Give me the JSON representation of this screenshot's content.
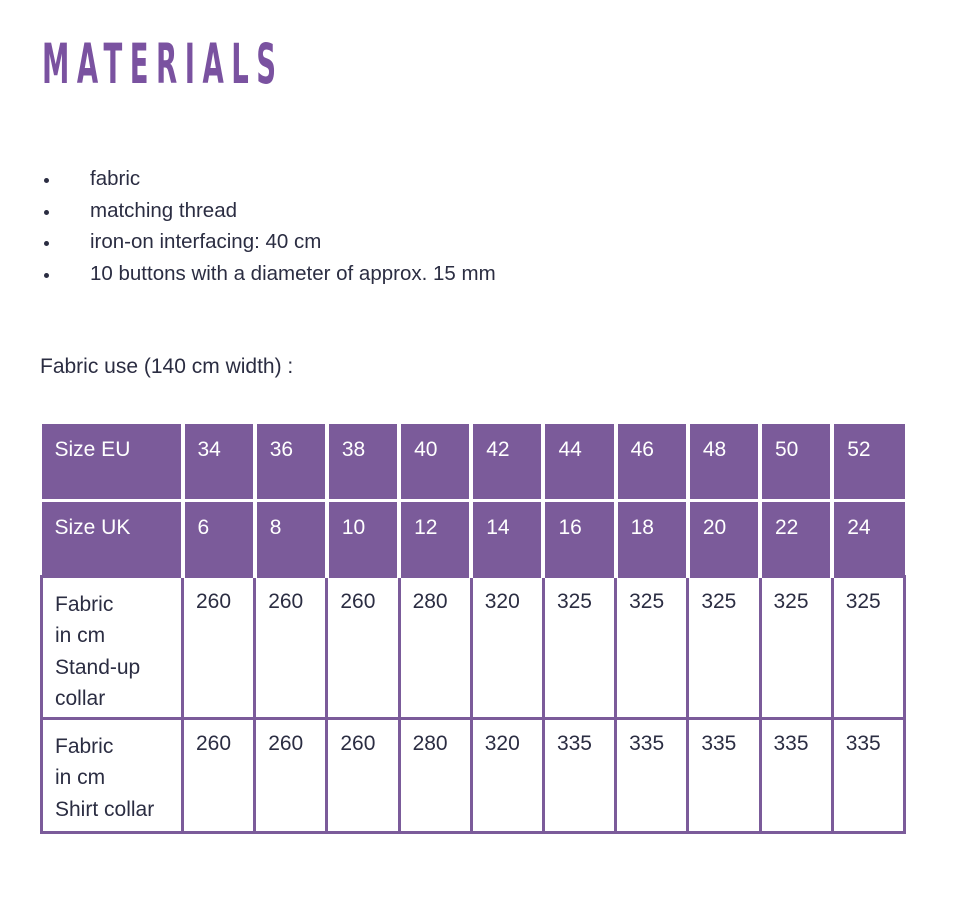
{
  "page": {
    "title": "MATERIALS",
    "fabric_use_label": "Fabric use (140 cm width) :"
  },
  "materials_list": [
    "fabric",
    "matching thread",
    "iron-on interfacing: 40 cm",
    "10 buttons with a diameter of approx. 15 mm"
  ],
  "icons": {
    "bullet_icon": "•"
  },
  "colors": {
    "title_purple": "#7a52a0",
    "table_header_purple": "#7b5b9a",
    "table_border_purple": "#7b5b9a",
    "text_dark": "#2b2d42",
    "header_text_white": "#ffffff"
  },
  "size_table": {
    "header_rows": [
      {
        "label": "Size EU",
        "values": [
          "34",
          "36",
          "38",
          "40",
          "42",
          "44",
          "46",
          "48",
          "50",
          "52"
        ]
      },
      {
        "label": "Size UK",
        "values": [
          "6",
          "8",
          "10",
          "12",
          "14",
          "16",
          "18",
          "20",
          "22",
          "24"
        ]
      }
    ],
    "body_rows": [
      {
        "label": "Fabric\nin cm\nStand-up\ncollar",
        "values": [
          "260",
          "260",
          "260",
          "280",
          "320",
          "325",
          "325",
          "325",
          "325",
          "325"
        ]
      },
      {
        "label": "Fabric\nin cm\nShirt collar",
        "values": [
          "260",
          "260",
          "260",
          "280",
          "320",
          "335",
          "335",
          "335",
          "335",
          "335"
        ]
      }
    ]
  }
}
